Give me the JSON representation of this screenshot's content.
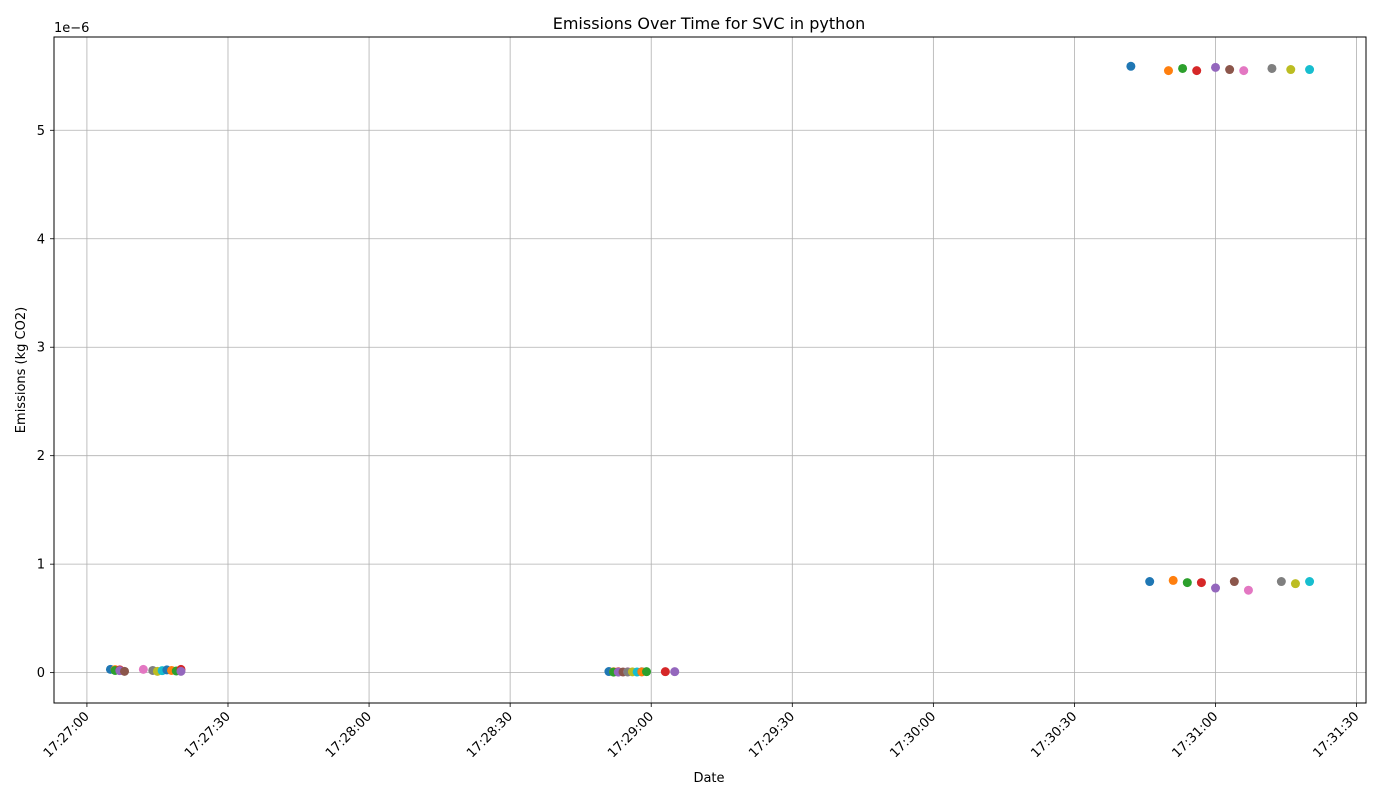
{
  "chart_data": {
    "type": "scatter",
    "title": "Emissions Over Time for SVC in python",
    "xlabel": "Date",
    "ylabel": "Emissions (kg CO2)",
    "y_offset_label": "1e−6",
    "grid": true,
    "legend": "none",
    "x_ticks": [
      "17:27:00",
      "17:27:30",
      "17:28:00",
      "17:28:30",
      "17:29:00",
      "17:29:30",
      "17:30:00",
      "17:30:30",
      "17:31:00",
      "17:31:30"
    ],
    "y_ticks": [
      "0",
      "1",
      "2",
      "3",
      "4",
      "5"
    ],
    "xlim": [
      "17:26:53",
      "17:31:32"
    ],
    "ylim": [
      -0.28,
      5.86
    ],
    "y_unit_scale": "1e-6",
    "colors": [
      "#1f77b4",
      "#ff7f0e",
      "#2ca02c",
      "#d62728",
      "#9467bd",
      "#8c564b",
      "#e377c2",
      "#7f7f7f",
      "#bcbd22",
      "#17becf"
    ],
    "series": [
      {
        "values": [
          {
            "x": "17:27:05",
            "y": 0.03
          },
          {
            "x": "17:27:06",
            "y": 0.028
          },
          {
            "x": "17:27:06",
            "y": 0.02
          },
          {
            "x": "17:27:07",
            "y": 0.025
          },
          {
            "x": "17:27:07",
            "y": 0.018
          },
          {
            "x": "17:27:08",
            "y": 0.012
          },
          {
            "x": "17:27:12",
            "y": 0.03
          },
          {
            "x": "17:27:14",
            "y": 0.02
          },
          {
            "x": "17:27:15",
            "y": 0.012
          },
          {
            "x": "17:27:16",
            "y": 0.018
          },
          {
            "x": "17:27:17",
            "y": 0.025
          },
          {
            "x": "17:27:18",
            "y": 0.02
          },
          {
            "x": "17:27:19",
            "y": 0.015
          },
          {
            "x": "17:27:20",
            "y": 0.03
          },
          {
            "x": "17:27:20",
            "y": 0.012
          }
        ]
      },
      {
        "values": [
          {
            "x": "17:28:51",
            "y": 0.01
          },
          {
            "x": "17:28:52",
            "y": 0.008
          },
          {
            "x": "17:28:52",
            "y": 0.005
          },
          {
            "x": "17:28:53",
            "y": 0.008
          },
          {
            "x": "17:28:53",
            "y": 0.005
          },
          {
            "x": "17:28:54",
            "y": 0.006
          },
          {
            "x": "17:28:55",
            "y": 0.008
          },
          {
            "x": "17:28:55",
            "y": 0.006
          },
          {
            "x": "17:28:56",
            "y": 0.007
          },
          {
            "x": "17:28:57",
            "y": 0.006
          },
          {
            "x": "17:28:58",
            "y": 0.008
          },
          {
            "x": "17:28:58",
            "y": 0.007
          },
          {
            "x": "17:28:59",
            "y": 0.009
          },
          {
            "x": "17:29:03",
            "y": 0.009
          },
          {
            "x": "17:29:05",
            "y": 0.009
          }
        ]
      },
      {
        "values": [
          {
            "x": "17:30:42",
            "y": 5.59
          },
          {
            "x": "17:30:50",
            "y": 5.55
          },
          {
            "x": "17:30:53",
            "y": 5.57
          },
          {
            "x": "17:30:56",
            "y": 5.55
          },
          {
            "x": "17:31:00",
            "y": 5.58
          },
          {
            "x": "17:31:03",
            "y": 5.56
          },
          {
            "x": "17:31:06",
            "y": 5.55
          },
          {
            "x": "17:31:12",
            "y": 5.57
          },
          {
            "x": "17:31:16",
            "y": 5.56
          },
          {
            "x": "17:31:20",
            "y": 5.56
          }
        ]
      },
      {
        "values": [
          {
            "x": "17:30:46",
            "y": 0.84
          },
          {
            "x": "17:30:51",
            "y": 0.85
          },
          {
            "x": "17:30:54",
            "y": 0.83
          },
          {
            "x": "17:30:57",
            "y": 0.83
          },
          {
            "x": "17:31:00",
            "y": 0.78
          },
          {
            "x": "17:31:04",
            "y": 0.84
          },
          {
            "x": "17:31:07",
            "y": 0.76
          },
          {
            "x": "17:31:14",
            "y": 0.84
          },
          {
            "x": "17:31:17",
            "y": 0.82
          },
          {
            "x": "17:31:20",
            "y": 0.84
          }
        ]
      }
    ]
  }
}
